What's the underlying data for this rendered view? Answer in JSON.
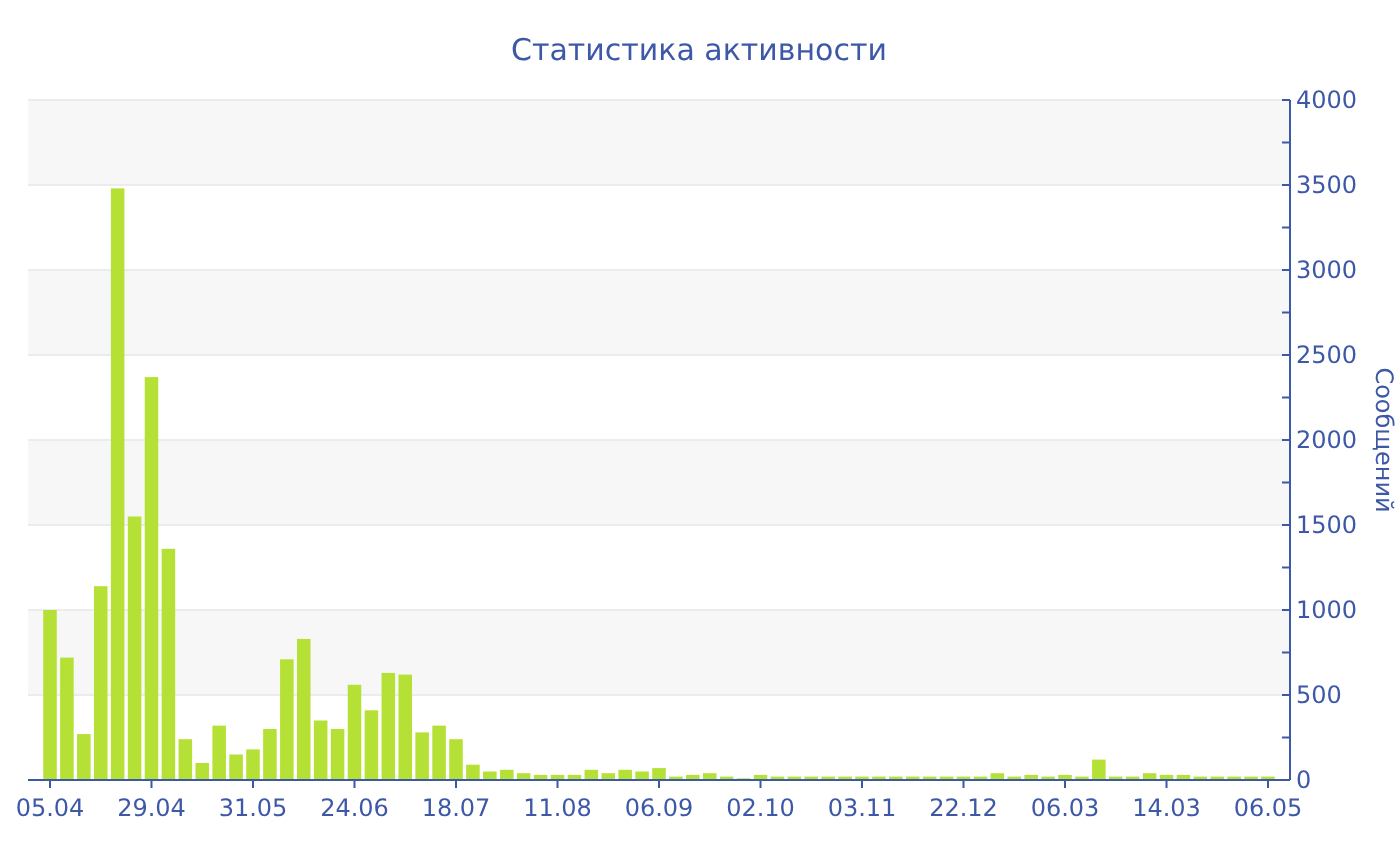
{
  "chart_data": {
    "type": "bar",
    "title": "Статистика активности",
    "ylabel": "Сообщений",
    "categories": [
      "05.04",
      null,
      null,
      null,
      null,
      null,
      "29.04",
      null,
      null,
      null,
      null,
      null,
      "31.05",
      null,
      null,
      null,
      null,
      null,
      "24.06",
      null,
      null,
      null,
      null,
      null,
      "18.07",
      null,
      null,
      null,
      null,
      null,
      "11.08",
      null,
      null,
      null,
      null,
      null,
      "06.09",
      null,
      null,
      null,
      null,
      null,
      "02.10",
      null,
      null,
      null,
      null,
      null,
      "03.11",
      null,
      null,
      null,
      null,
      null,
      "22.12",
      null,
      null,
      null,
      null,
      null,
      "06.03",
      null,
      null,
      null,
      null,
      null,
      "14.03",
      null,
      null,
      null,
      null,
      null,
      "06.05"
    ],
    "values": [
      1000,
      720,
      270,
      1140,
      3480,
      1550,
      2370,
      1360,
      240,
      100,
      320,
      150,
      180,
      300,
      710,
      830,
      350,
      300,
      560,
      410,
      630,
      620,
      280,
      320,
      240,
      90,
      50,
      60,
      40,
      30,
      30,
      30,
      60,
      40,
      60,
      50,
      70,
      20,
      30,
      40,
      20,
      10,
      30,
      20,
      20,
      20,
      20,
      20,
      20,
      20,
      20,
      20,
      20,
      20,
      20,
      20,
      40,
      20,
      30,
      20,
      30,
      20,
      120,
      20,
      20,
      40,
      30,
      30,
      20,
      20,
      20,
      20,
      20
    ],
    "color": "#b5e035",
    "ylim": [
      0,
      4000
    ],
    "yticks": [
      0,
      {
        "value": 250,
        "label": null
      },
      500,
      {
        "value": 750,
        "label": null
      },
      1000,
      {
        "value": 1250,
        "label": null
      },
      1500,
      {
        "value": 1750,
        "label": null
      },
      2000,
      {
        "value": 2250,
        "label": null
      },
      2500,
      {
        "value": 2750,
        "label": null
      },
      3000,
      {
        "value": 3250,
        "label": null
      },
      3500,
      {
        "value": 3750,
        "label": null
      },
      4000
    ],
    "grid": "y"
  }
}
